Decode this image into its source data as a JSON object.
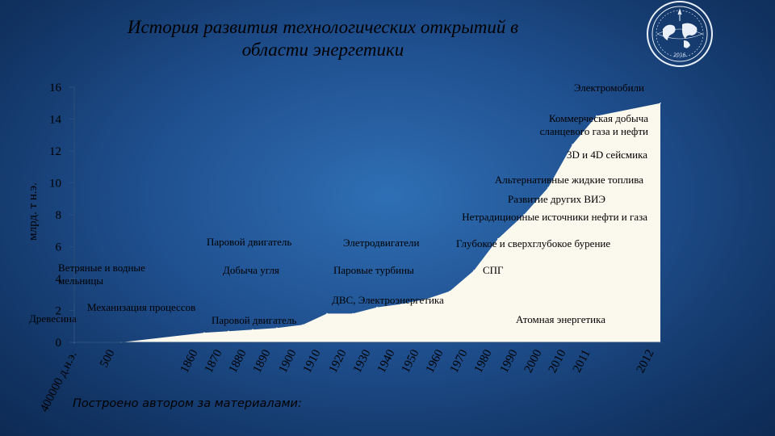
{
  "title": {
    "line1": "История развития технологических открытий в",
    "line2": "области энергетики"
  },
  "footer": "Построено автором за материалами:",
  "logo": {
    "icon": "world-globe-emblem-icon",
    "text": "2016"
  },
  "chart_data": {
    "type": "area",
    "ylabel": "млрд. т н.э.",
    "xlabel": "",
    "ylim": [
      0,
      16
    ],
    "yticks": [
      0,
      2,
      4,
      6,
      8,
      10,
      12,
      14,
      16
    ],
    "categories": [
      "400000 д.н.э.",
      "500",
      "1860",
      "1870",
      "1880",
      "1890",
      "1900",
      "1910",
      "1920",
      "1930",
      "1940",
      "1950",
      "1960",
      "1970",
      "1980",
      "1990",
      "2000",
      "2010",
      "2011",
      "2012"
    ],
    "values": [
      0,
      0,
      0.6,
      0.7,
      0.8,
      0.9,
      1.1,
      1.8,
      1.8,
      2.2,
      2.4,
      2.7,
      3.2,
      4.5,
      6.5,
      8.0,
      9.7,
      12.4,
      14.2,
      15.0
    ],
    "fill_color": "#fbf8ee",
    "grid": false,
    "annotations": [
      "Электромобили",
      "Коммерческая добыча сланцевого газа и нефти",
      "3D и 4D сейсмика",
      "Альтернативные жидкие топлива",
      "Развитие других ВИЭ",
      "Нетрадиционные источники нефти и газа",
      "Паровой двигатель",
      "Элетродвигатели",
      "Глубокое и сверхглубокое бурение",
      "Ветряные и водные мельницы",
      "Добыча угля",
      "Паровые турбины",
      "СПГ",
      "ДВС, Электроэнергетика",
      "Механизация процессов",
      "Паровой двигатель",
      "Атомная энергетика",
      "Древесина"
    ]
  }
}
